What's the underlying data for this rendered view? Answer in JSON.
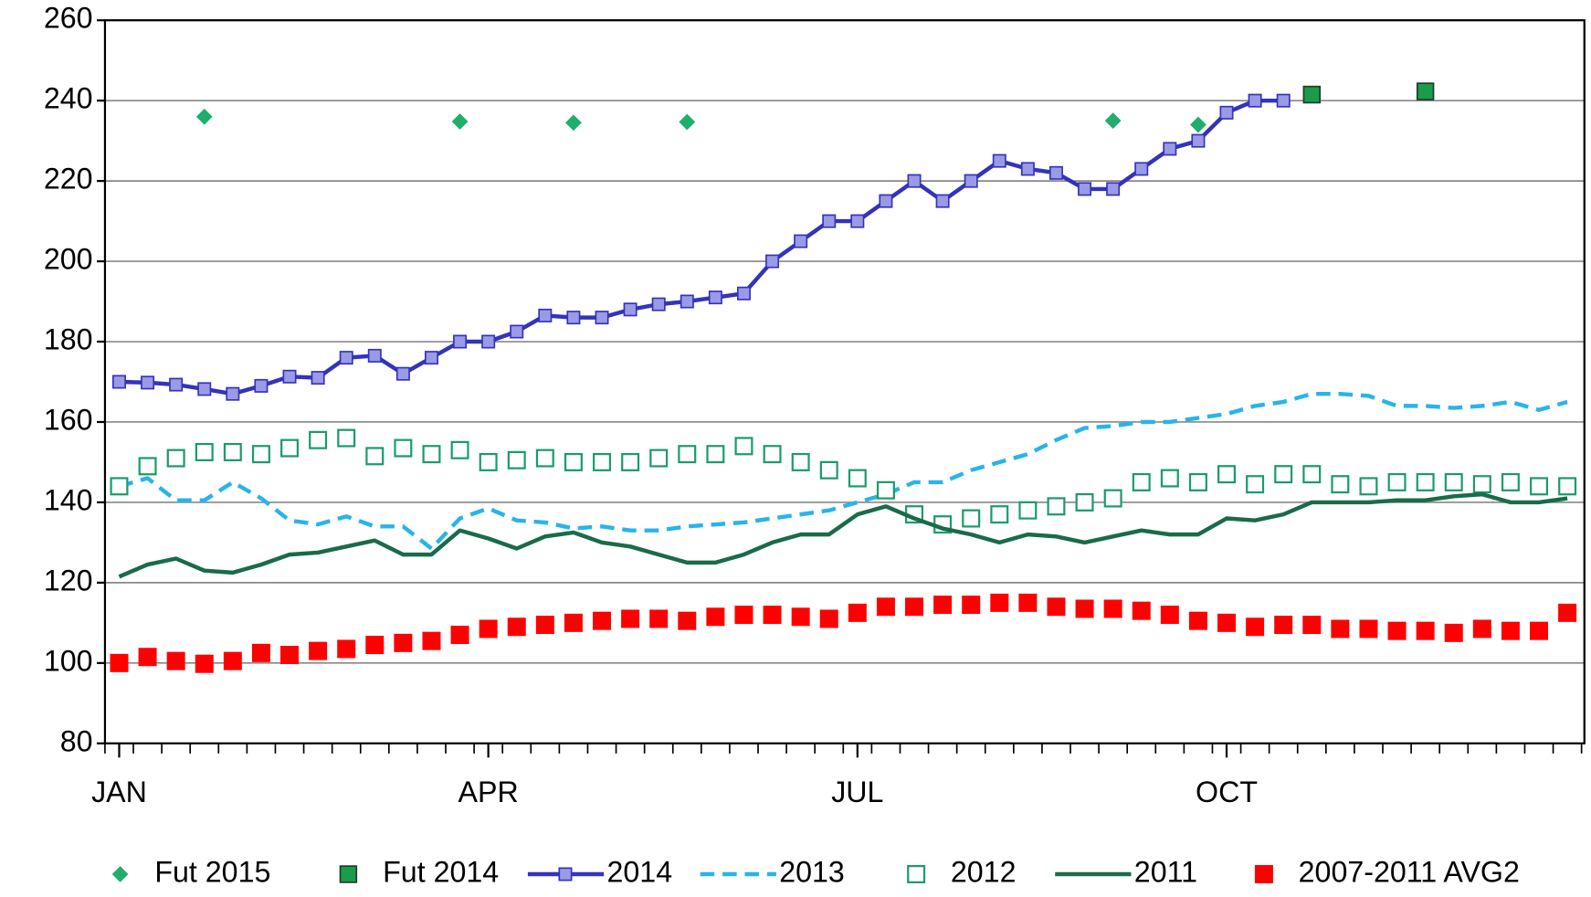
{
  "chart_data": {
    "type": "line",
    "xlim": [
      0.5,
      52.6
    ],
    "xticks": [
      {
        "value": 1,
        "label": "JAN"
      },
      {
        "value": 14,
        "label": "APR"
      },
      {
        "value": 27,
        "label": "JUL"
      },
      {
        "value": 40,
        "label": "OCT"
      }
    ],
    "ylim": [
      80,
      260
    ],
    "yticks": [
      80,
      100,
      120,
      140,
      160,
      180,
      200,
      220,
      240,
      260
    ],
    "grid": true,
    "legend": "bottom",
    "series": [
      {
        "name": "Fut 2015",
        "color": "#1fae6b",
        "marker": "diamond",
        "line": "none",
        "x": [
          4,
          13,
          17,
          21,
          36,
          39
        ],
        "values": [
          236,
          234.8,
          234.5,
          234.7,
          235,
          234
        ]
      },
      {
        "name": "Fut 2014",
        "color": "#1a9c4a",
        "marker": "square",
        "line": "none",
        "x": [
          43,
          47
        ],
        "values": [
          241.5,
          242.3
        ]
      },
      {
        "name": "2014",
        "color": "#3333bb",
        "marker": "small-square",
        "line": "solid",
        "x": [
          1,
          2,
          3,
          4,
          5,
          6,
          7,
          8,
          9,
          10,
          11,
          12,
          13,
          14,
          15,
          16,
          17,
          18,
          19,
          20,
          21,
          22,
          23,
          24,
          25,
          26,
          27,
          28,
          29,
          30,
          31,
          32,
          33,
          34,
          35,
          36,
          37,
          38,
          39,
          40,
          41,
          42
        ],
        "values": [
          170,
          169.8,
          169.3,
          168.2,
          167,
          169,
          171.3,
          171,
          176,
          176.5,
          172,
          176,
          180,
          180,
          182.5,
          186.5,
          186,
          186,
          188,
          189.3,
          190,
          191,
          192,
          200,
          205,
          210,
          210,
          215,
          220,
          215,
          220,
          225,
          223,
          222,
          218,
          218,
          223,
          228,
          230,
          237,
          240,
          240
        ]
      },
      {
        "name": "2013",
        "color": "#29b4e8",
        "marker": "none",
        "line": "dashed",
        "x": [
          1,
          2,
          3,
          4,
          5,
          6,
          7,
          8,
          9,
          10,
          11,
          12,
          13,
          14,
          15,
          16,
          17,
          18,
          19,
          20,
          21,
          22,
          23,
          24,
          25,
          26,
          27,
          28,
          29,
          30,
          31,
          32,
          33,
          34,
          35,
          36,
          37,
          38,
          39,
          40,
          41,
          42,
          43,
          44,
          45,
          46,
          47,
          48,
          49,
          50,
          51,
          52
        ],
        "values": [
          144,
          146,
          140.5,
          140.5,
          145,
          141,
          135.5,
          134.5,
          136.5,
          134,
          134,
          128.5,
          136,
          138.5,
          135.5,
          135,
          133.5,
          134,
          133,
          133,
          134,
          134.5,
          135,
          136,
          137,
          138,
          140,
          142,
          145,
          145,
          148,
          150,
          152,
          155.5,
          158.5,
          159,
          160,
          160,
          161,
          162,
          164,
          165,
          167,
          167,
          166.5,
          164,
          164,
          163.5,
          164,
          165,
          163,
          165
        ]
      },
      {
        "name": "2012",
        "color": "#1a9c6a",
        "marker": "hollow-square",
        "line": "none",
        "x": [
          1,
          2,
          3,
          4,
          5,
          6,
          7,
          8,
          9,
          10,
          11,
          12,
          13,
          14,
          15,
          16,
          17,
          18,
          19,
          20,
          21,
          22,
          23,
          24,
          25,
          26,
          27,
          28,
          29,
          30,
          31,
          32,
          33,
          34,
          35,
          36,
          37,
          38,
          39,
          40,
          41,
          42,
          43,
          44,
          45,
          46,
          47,
          48,
          49,
          50,
          51,
          52
        ],
        "values": [
          144,
          149,
          151,
          152.5,
          152.5,
          152,
          153.5,
          155.5,
          156,
          151.5,
          153.5,
          152,
          153,
          150,
          150.5,
          151,
          150,
          150,
          150,
          151,
          152,
          152,
          154,
          152,
          150,
          148,
          146,
          143,
          137,
          134.5,
          136,
          137,
          138,
          139,
          140,
          141,
          145,
          146,
          145,
          147,
          144.5,
          147,
          147,
          144.5,
          144,
          145,
          145,
          145,
          144.5,
          145,
          144,
          144
        ]
      },
      {
        "name": "2011",
        "color": "#1a6b4a",
        "marker": "none",
        "line": "solid",
        "x": [
          1,
          2,
          3,
          4,
          5,
          6,
          7,
          8,
          9,
          10,
          11,
          12,
          13,
          14,
          15,
          16,
          17,
          18,
          19,
          20,
          21,
          22,
          23,
          24,
          25,
          26,
          27,
          28,
          29,
          30,
          31,
          32,
          33,
          34,
          35,
          36,
          37,
          38,
          39,
          40,
          41,
          42,
          43,
          44,
          45,
          46,
          47,
          48,
          49,
          50,
          51,
          52
        ],
        "values": [
          121.5,
          124.5,
          126,
          123,
          122.5,
          124.5,
          127,
          127.5,
          129,
          130.5,
          127,
          127,
          133,
          131,
          128.5,
          131.5,
          132.5,
          130,
          129,
          127,
          125,
          125,
          127,
          130,
          132,
          132,
          137,
          139,
          136,
          133.5,
          132,
          130,
          132,
          131.5,
          130,
          131.5,
          133,
          132,
          132,
          136,
          135.5,
          137,
          140,
          140,
          140,
          140.5,
          140.5,
          141.5,
          142,
          140,
          140,
          141
        ]
      },
      {
        "name": "2007-2011 AVG2",
        "color": "#ff0000",
        "marker": "big-square",
        "line": "none",
        "x": [
          1,
          2,
          3,
          4,
          5,
          6,
          7,
          8,
          9,
          10,
          11,
          12,
          13,
          14,
          15,
          16,
          17,
          18,
          19,
          20,
          21,
          22,
          23,
          24,
          25,
          26,
          27,
          28,
          29,
          30,
          31,
          32,
          33,
          34,
          35,
          36,
          37,
          38,
          39,
          40,
          41,
          42,
          43,
          44,
          45,
          46,
          47,
          48,
          49,
          50,
          51,
          52
        ],
        "values": [
          100,
          101.5,
          100.5,
          99.8,
          100.5,
          102.5,
          102,
          103,
          103.5,
          104.5,
          105,
          105.5,
          107,
          108.5,
          109,
          109.5,
          110,
          110.5,
          111,
          111,
          110.5,
          111.5,
          112,
          112,
          111.5,
          111,
          112.5,
          114,
          114,
          114.5,
          114.5,
          115,
          115,
          114,
          113.5,
          113.5,
          113,
          112,
          110.5,
          110,
          109,
          109.5,
          109.5,
          108.5,
          108.5,
          108,
          108,
          107.5,
          108.5,
          108,
          108,
          112.5
        ]
      }
    ]
  }
}
